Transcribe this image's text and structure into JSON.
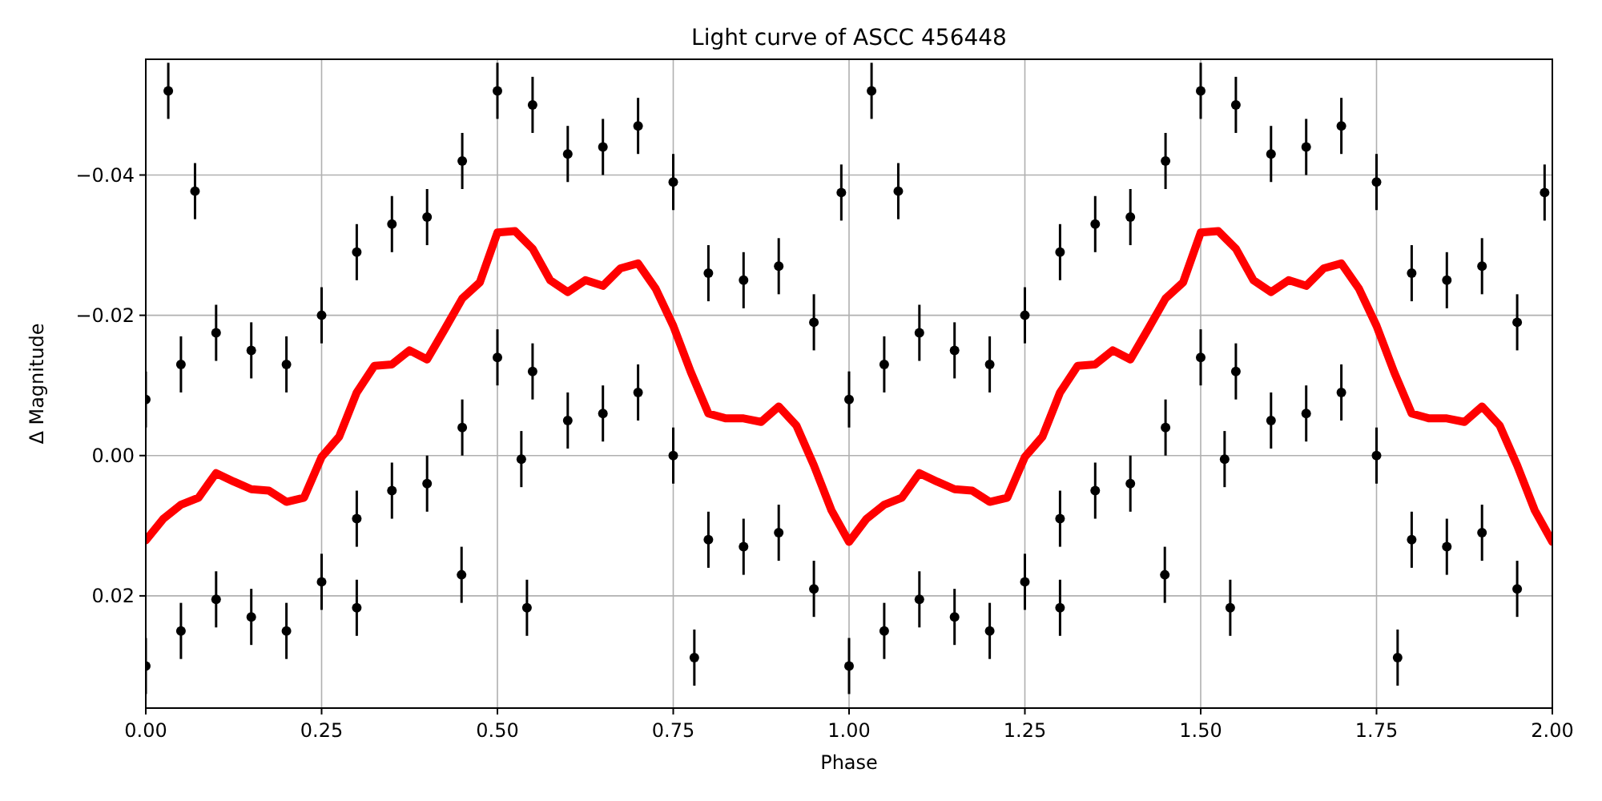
{
  "chart_data": {
    "type": "scatter",
    "title": "Light curve of ASCC 456448",
    "xlabel": "Phase",
    "ylabel": "Δ Magnitude",
    "xlim": [
      0,
      2
    ],
    "ylim": [
      0.036,
      -0.0565
    ],
    "xticks": [
      {
        "value": 0,
        "label": "0.00"
      },
      {
        "value": 0.25,
        "label": "0.25"
      },
      {
        "value": 0.5,
        "label": "0.50"
      },
      {
        "value": 0.75,
        "label": "0.75"
      },
      {
        "value": 1,
        "label": "1.00"
      },
      {
        "value": 1.25,
        "label": "1.25"
      },
      {
        "value": 1.5,
        "label": "1.50"
      },
      {
        "value": 1.75,
        "label": "1.75"
      },
      {
        "value": 2,
        "label": "2.00"
      }
    ],
    "yticks": [
      {
        "value": -0.04,
        "label": "−0.04"
      },
      {
        "value": -0.02,
        "label": "−0.02"
      },
      {
        "value": 0,
        "label": "0.00"
      },
      {
        "value": 0.02,
        "label": "0.02"
      }
    ],
    "grid": true,
    "series": [
      {
        "color": "#000000",
        "marker": "circle",
        "x": [
          0,
          0,
          0.05,
          0.05,
          0.1,
          0.1,
          0.15,
          0.15,
          0.2,
          0.2,
          0.25,
          0.25,
          0.3,
          0.3,
          0.35,
          0.35,
          0.4,
          0.4,
          0.45,
          0.45,
          0.5,
          0.5,
          0.55,
          0.55,
          0.6,
          0.6,
          0.65,
          0.65,
          0.7,
          0.7,
          0.75,
          0.75,
          0.8,
          0.8,
          0.85,
          0.85,
          0.9,
          0.9,
          0.95,
          0.95,
          0.032,
          0.07,
          0.3,
          0.542,
          0.78,
          0.989,
          0.534,
          0.449,
          1,
          1,
          1.05,
          1.05,
          1.1,
          1.1,
          1.15,
          1.15,
          1.2,
          1.2,
          1.25,
          1.25,
          1.3,
          1.3,
          1.35,
          1.35,
          1.4,
          1.4,
          1.45,
          1.45,
          1.5,
          1.5,
          1.55,
          1.55,
          1.6,
          1.6,
          1.65,
          1.65,
          1.7,
          1.7,
          1.75,
          1.75,
          1.8,
          1.8,
          1.85,
          1.85,
          1.9,
          1.9,
          1.95,
          1.95,
          1.032,
          1.07,
          1.3,
          1.542,
          1.78,
          1.989,
          1.534,
          1.449
        ],
        "values": [
          -0.008,
          0.03,
          -0.013,
          0.025,
          -0.0175,
          0.0205,
          -0.015,
          0.023,
          -0.013,
          0.025,
          -0.02,
          0.018,
          -0.029,
          0.009,
          -0.033,
          0.005,
          -0.034,
          0.004,
          -0.042,
          -0.004,
          -0.052,
          -0.014,
          -0.05,
          -0.012,
          -0.043,
          -0.005,
          -0.044,
          -0.006,
          -0.047,
          -0.009,
          -0.039,
          0,
          -0.026,
          0.012,
          -0.025,
          0.013,
          -0.027,
          0.011,
          -0.019,
          0.019,
          -0.052,
          -0.0377,
          0.0217,
          0.0217,
          0.0288,
          -0.0375,
          0.0005,
          0.017,
          -0.008,
          0.03,
          -0.013,
          0.025,
          -0.0175,
          0.0205,
          -0.015,
          0.023,
          -0.013,
          0.025,
          -0.02,
          0.018,
          -0.029,
          0.009,
          -0.033,
          0.005,
          -0.034,
          0.004,
          -0.042,
          -0.004,
          -0.052,
          -0.014,
          -0.05,
          -0.012,
          -0.043,
          -0.005,
          -0.044,
          -0.006,
          -0.047,
          -0.009,
          -0.039,
          0,
          -0.026,
          0.012,
          -0.025,
          0.013,
          -0.027,
          0.011,
          -0.019,
          0.019,
          -0.052,
          -0.0377,
          0.0217,
          0.0217,
          0.0288,
          -0.0375,
          0.0005,
          0.017
        ],
        "errors": [
          0.004,
          0.004,
          0.004,
          0.004,
          0.004,
          0.004,
          0.004,
          0.004,
          0.004,
          0.004,
          0.004,
          0.004,
          0.004,
          0.004,
          0.004,
          0.004,
          0.004,
          0.004,
          0.004,
          0.004,
          0.004,
          0.004,
          0.004,
          0.004,
          0.004,
          0.004,
          0.004,
          0.004,
          0.004,
          0.004,
          0.004,
          0.004,
          0.004,
          0.004,
          0.004,
          0.004,
          0.004,
          0.004,
          0.004,
          0.004,
          0.004,
          0.004,
          0.004,
          0.004,
          0.004,
          0.004,
          0.004,
          0.004,
          0.004,
          0.004,
          0.004,
          0.004,
          0.004,
          0.004,
          0.004,
          0.004,
          0.004,
          0.004,
          0.004,
          0.004,
          0.004,
          0.004,
          0.004,
          0.004,
          0.004,
          0.004,
          0.004,
          0.004,
          0.004,
          0.004,
          0.004,
          0.004,
          0.004,
          0.004,
          0.004,
          0.004,
          0.004,
          0.004,
          0.004,
          0.004,
          0.004,
          0.004,
          0.004,
          0.004,
          0.004,
          0.004,
          0.004,
          0.004,
          0.004,
          0.004,
          0.004,
          0.004,
          0.004,
          0.004,
          0.004,
          0.004
        ]
      },
      {
        "type": "line",
        "color": "#ff0000",
        "marker": "none",
        "x": [
          0,
          0.025,
          0.05,
          0.075,
          0.1,
          0.125,
          0.15,
          0.175,
          0.2,
          0.225,
          0.25,
          0.275,
          0.3,
          0.325,
          0.35,
          0.375,
          0.4,
          0.425,
          0.45,
          0.475,
          0.5,
          0.525,
          0.55,
          0.575,
          0.6,
          0.625,
          0.65,
          0.675,
          0.7,
          0.725,
          0.75,
          0.775,
          0.8,
          0.825,
          0.85,
          0.875,
          0.9,
          0.925,
          0.95,
          0.975,
          1,
          1.025,
          1.05,
          1.075,
          1.1,
          1.125,
          1.15,
          1.175,
          1.2,
          1.225,
          1.25,
          1.275,
          1.3,
          1.325,
          1.35,
          1.375,
          1.4,
          1.425,
          1.45,
          1.475,
          1.5,
          1.525,
          1.55,
          1.575,
          1.6,
          1.625,
          1.65,
          1.675,
          1.7,
          1.725,
          1.75,
          1.775,
          1.8,
          1.825,
          1.85,
          1.875,
          1.9,
          1.925,
          1.95,
          1.975,
          2
        ],
        "values": [
          0.0121,
          0.009,
          0.007,
          0.006,
          0.0025,
          0.0037,
          0.0048,
          0.005,
          0.0066,
          0.006,
          0.0002,
          -0.0027,
          -0.009,
          -0.0128,
          -0.013,
          -0.015,
          -0.0137,
          -0.018,
          -0.0224,
          -0.0247,
          -0.0318,
          -0.032,
          -0.0295,
          -0.025,
          -0.0233,
          -0.025,
          -0.0242,
          -0.0267,
          -0.0274,
          -0.0238,
          -0.0185,
          -0.0119,
          -0.006,
          -0.0053,
          -0.0053,
          -0.0048,
          -0.007,
          -0.0043,
          0.0014,
          0.0078,
          0.0123,
          0.009,
          0.007,
          0.006,
          0.0025,
          0.0037,
          0.0048,
          0.005,
          0.0066,
          0.006,
          0.0002,
          -0.0027,
          -0.009,
          -0.0128,
          -0.013,
          -0.015,
          -0.0137,
          -0.018,
          -0.0224,
          -0.0247,
          -0.0318,
          -0.032,
          -0.0295,
          -0.025,
          -0.0233,
          -0.025,
          -0.0242,
          -0.0267,
          -0.0274,
          -0.0238,
          -0.0185,
          -0.0119,
          -0.006,
          -0.0053,
          -0.0053,
          -0.0048,
          -0.007,
          -0.0043,
          0.0014,
          0.0078,
          0.0123
        ]
      }
    ]
  }
}
